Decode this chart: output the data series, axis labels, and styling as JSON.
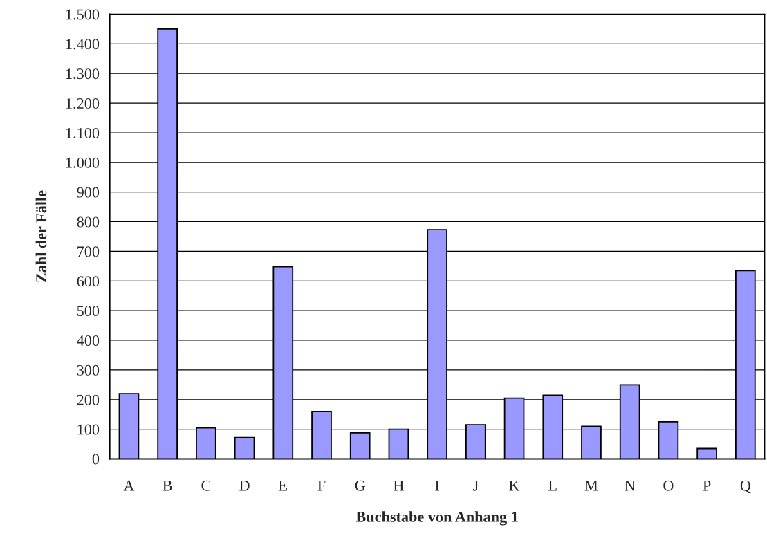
{
  "chart_data": {
    "type": "bar",
    "xlabel": "Buchstabe von Anhang 1",
    "ylabel": "Zahl der Fälle",
    "categories": [
      "A",
      "B",
      "C",
      "D",
      "E",
      "F",
      "G",
      "H",
      "I",
      "J",
      "K",
      "L",
      "M",
      "N",
      "O",
      "P",
      "Q"
    ],
    "values": [
      220,
      1450,
      105,
      72,
      648,
      160,
      88,
      100,
      773,
      115,
      205,
      215,
      110,
      250,
      125,
      35,
      635
    ],
    "color": "#9999ff",
    "ylim": [
      0,
      1500
    ],
    "yticks": [
      {
        "value": 0,
        "label": "0"
      },
      {
        "value": 100,
        "label": "100"
      },
      {
        "value": 200,
        "label": "200"
      },
      {
        "value": 300,
        "label": "300"
      },
      {
        "value": 400,
        "label": "400"
      },
      {
        "value": 500,
        "label": "500"
      },
      {
        "value": 600,
        "label": "600"
      },
      {
        "value": 700,
        "label": "700"
      },
      {
        "value": 800,
        "label": "800"
      },
      {
        "value": 900,
        "label": "900"
      },
      {
        "value": 1000,
        "label": "1.000"
      },
      {
        "value": 1100,
        "label": "1.100"
      },
      {
        "value": 1200,
        "label": "1.200"
      },
      {
        "value": 1300,
        "label": "1.300"
      },
      {
        "value": 1400,
        "label": "1.400"
      },
      {
        "value": 1500,
        "label": "1.500"
      }
    ],
    "grid": "y"
  }
}
